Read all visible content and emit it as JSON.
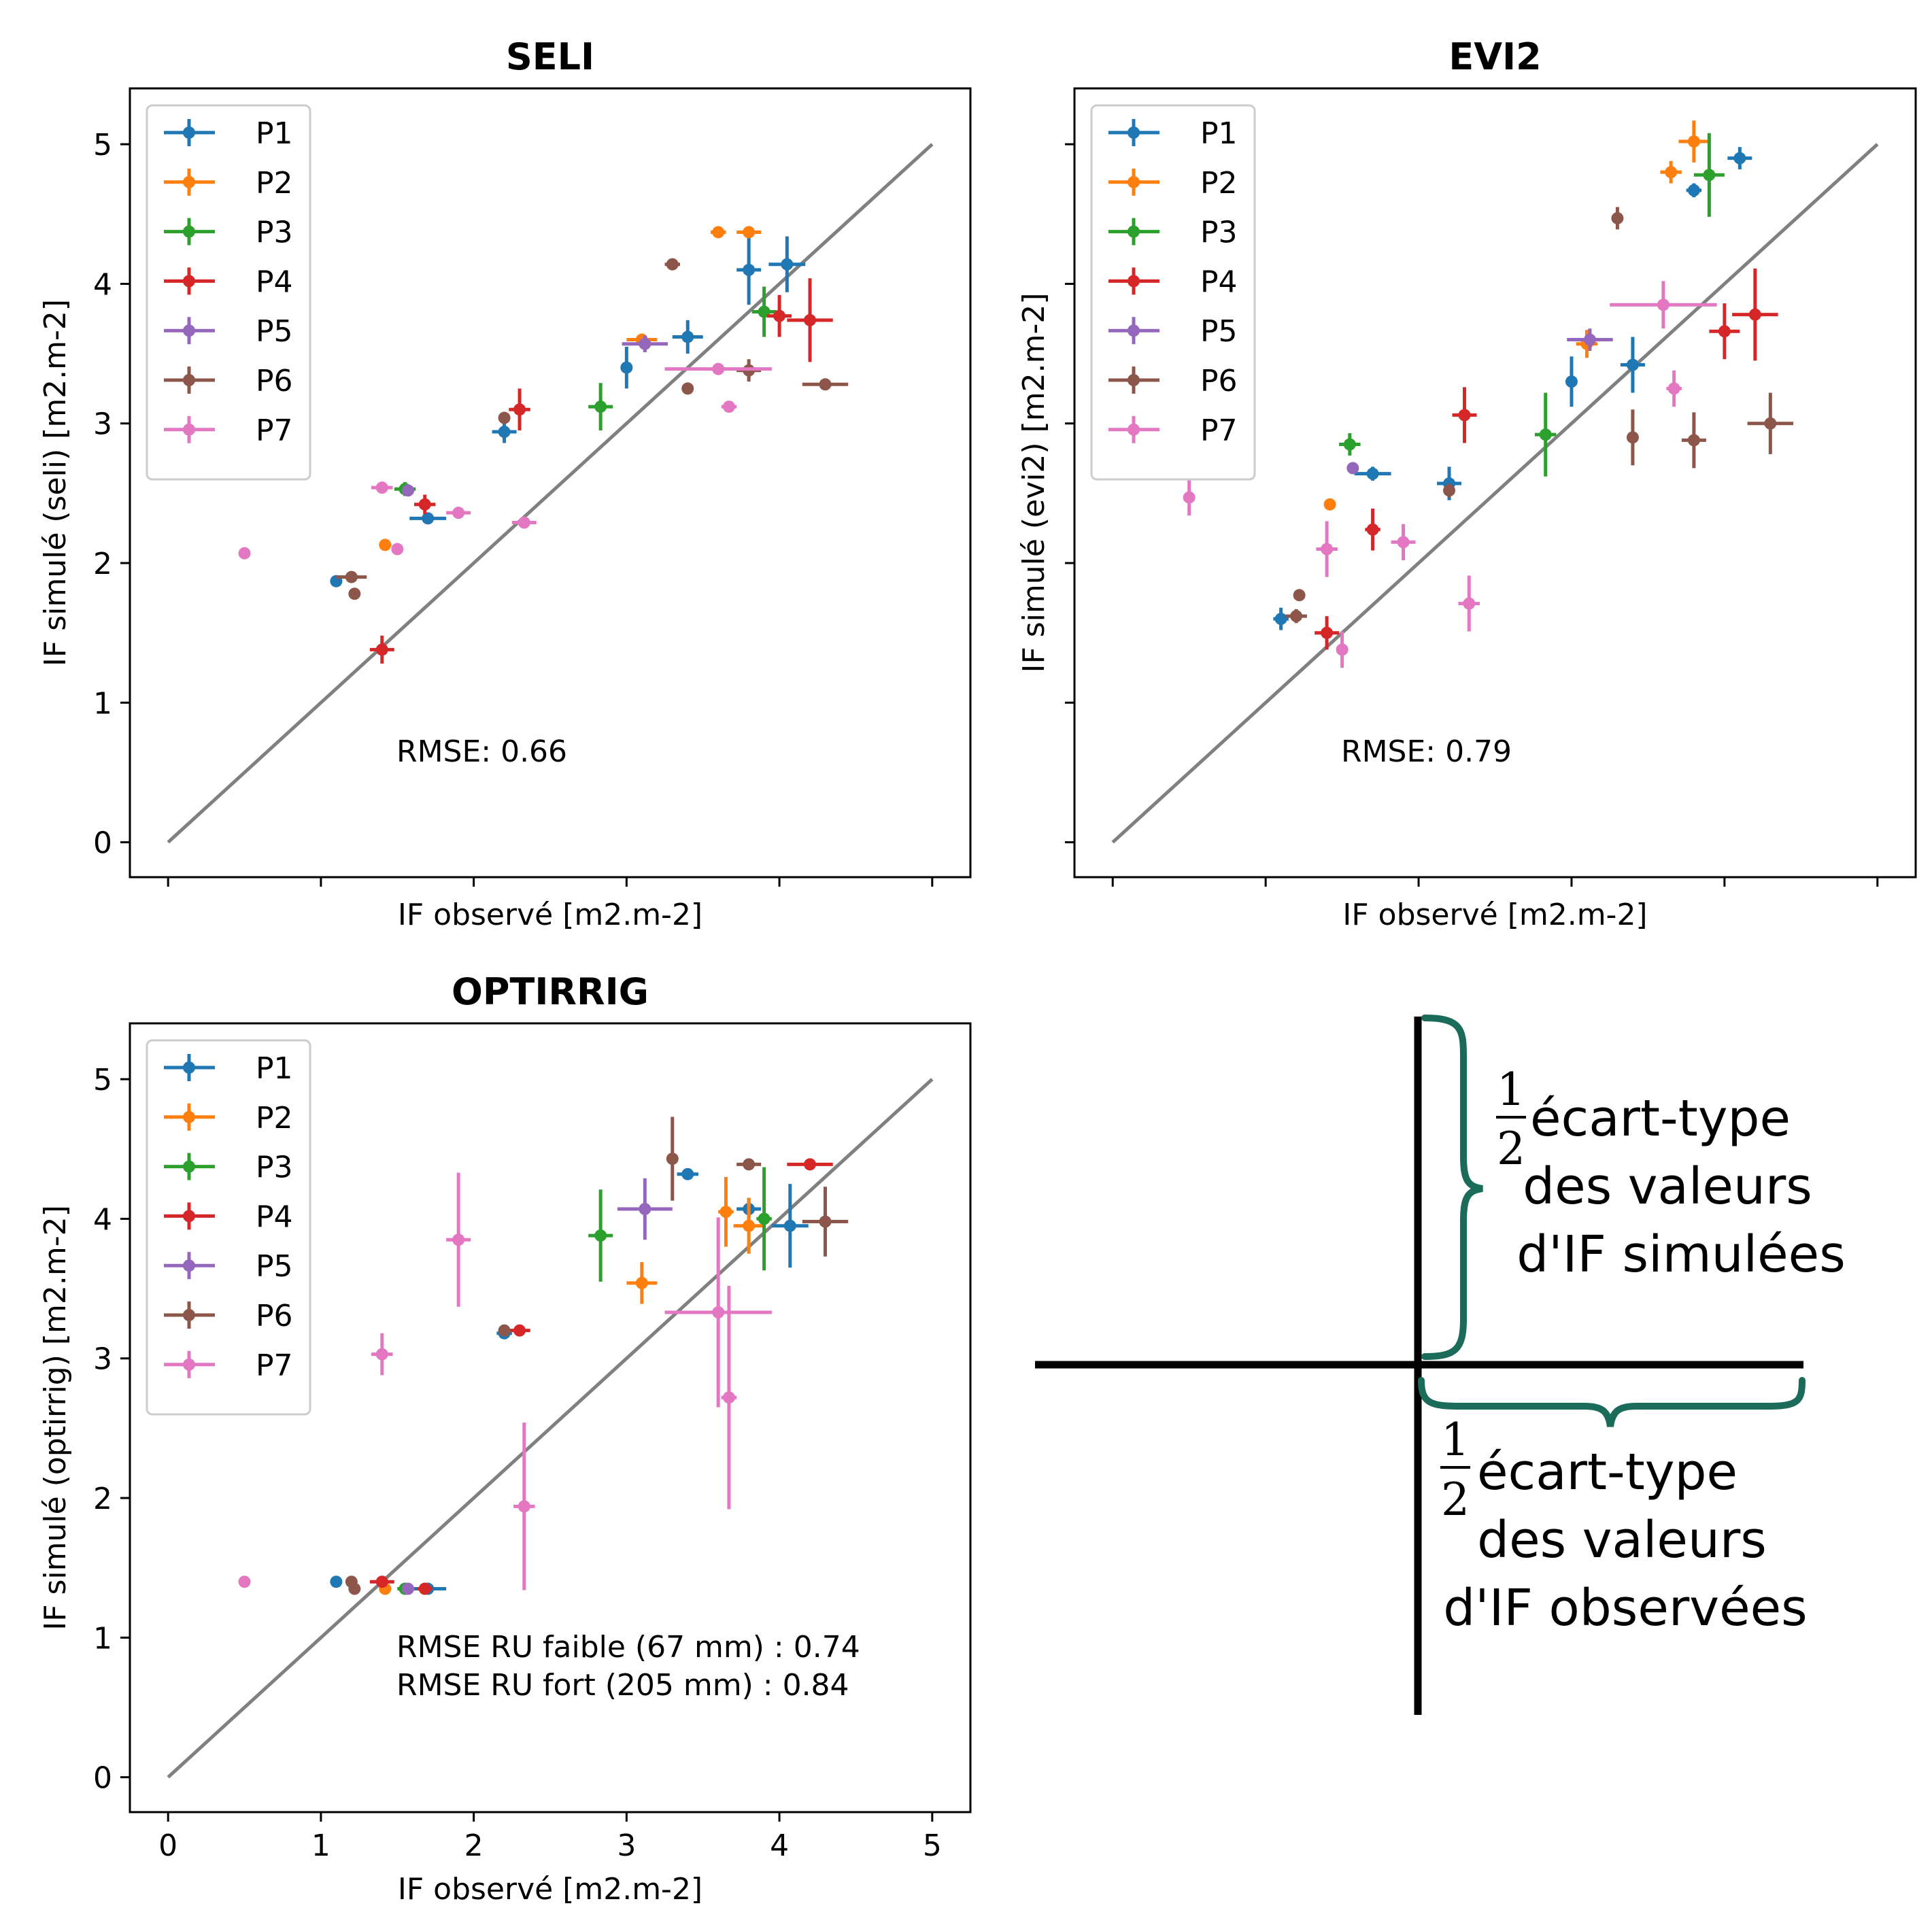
{
  "palette": {
    "P1": "#1f77b4",
    "P2": "#ff7f0e",
    "P3": "#2ca02c",
    "P4": "#d62728",
    "P5": "#9467bd",
    "P6": "#8c564b",
    "P7": "#e377c2",
    "identity_line": "#808080",
    "brace": "#1b6b5a"
  },
  "chart_data": [
    {
      "type": "scatter",
      "title": "SELI",
      "xlabel": "IF observé [m2.m-2]",
      "ylabel": "IF simulé (seli) [m2.m-2]",
      "xlim": [
        -0.25,
        5.25
      ],
      "ylim": [
        -0.25,
        5.4
      ],
      "xticks": [
        0,
        1,
        2,
        3,
        4,
        5
      ],
      "xtick_labels_shown": false,
      "yticks": [
        0,
        1,
        2,
        3,
        4,
        5
      ],
      "ytick_labels_shown": true,
      "identity_line": [
        0,
        5
      ],
      "legend": {
        "position": "top-left",
        "entries": [
          "P1",
          "P2",
          "P3",
          "P4",
          "P5",
          "P6",
          "P7"
        ]
      },
      "annotation": [
        "RMSE: 0.66"
      ],
      "series": [
        {
          "name": "P1",
          "points": [
            {
              "x": 1.1,
              "y": 1.87,
              "xerr": 0.03,
              "yerr": 0.03
            },
            {
              "x": 1.7,
              "y": 2.32,
              "xerr": 0.12,
              "yerr": 0.03
            },
            {
              "x": 2.2,
              "y": 2.94,
              "xerr": 0.08,
              "yerr": 0.08
            },
            {
              "x": 3.0,
              "y": 3.4,
              "xerr": 0.03,
              "yerr": 0.15
            },
            {
              "x": 3.4,
              "y": 3.62,
              "xerr": 0.1,
              "yerr": 0.12
            },
            {
              "x": 3.8,
              "y": 4.1,
              "xerr": 0.08,
              "yerr": 0.25
            },
            {
              "x": 4.05,
              "y": 4.14,
              "xerr": 0.12,
              "yerr": 0.2
            }
          ]
        },
        {
          "name": "P2",
          "points": [
            {
              "x": 1.42,
              "y": 2.13,
              "xerr": 0.03,
              "yerr": 0.02
            },
            {
              "x": 3.1,
              "y": 3.6,
              "xerr": 0.1,
              "yerr": 0.03
            },
            {
              "x": 3.6,
              "y": 4.37,
              "xerr": 0.05,
              "yerr": 0.03
            },
            {
              "x": 3.8,
              "y": 4.37,
              "xerr": 0.08,
              "yerr": 0.03
            }
          ]
        },
        {
          "name": "P3",
          "points": [
            {
              "x": 1.55,
              "y": 2.53,
              "xerr": 0.07,
              "yerr": 0.05
            },
            {
              "x": 2.83,
              "y": 3.12,
              "xerr": 0.08,
              "yerr": 0.17
            },
            {
              "x": 3.9,
              "y": 3.8,
              "xerr": 0.08,
              "yerr": 0.18
            }
          ]
        },
        {
          "name": "P4",
          "points": [
            {
              "x": 1.4,
              "y": 1.38,
              "xerr": 0.08,
              "yerr": 0.1
            },
            {
              "x": 1.68,
              "y": 2.42,
              "xerr": 0.07,
              "yerr": 0.07
            },
            {
              "x": 2.3,
              "y": 3.1,
              "xerr": 0.07,
              "yerr": 0.15
            },
            {
              "x": 4.0,
              "y": 3.77,
              "xerr": 0.08,
              "yerr": 0.15
            },
            {
              "x": 4.2,
              "y": 3.74,
              "xerr": 0.15,
              "yerr": 0.3
            }
          ]
        },
        {
          "name": "P5",
          "points": [
            {
              "x": 1.57,
              "y": 2.52,
              "xerr": 0.04,
              "yerr": 0.04
            },
            {
              "x": 3.12,
              "y": 3.57,
              "xerr": 0.15,
              "yerr": 0.06
            }
          ]
        },
        {
          "name": "P6",
          "points": [
            {
              "x": 1.2,
              "y": 1.9,
              "xerr": 0.1,
              "yerr": 0.02
            },
            {
              "x": 1.22,
              "y": 1.78,
              "xerr": 0.02,
              "yerr": 0.02
            },
            {
              "x": 2.2,
              "y": 3.04,
              "xerr": 0.03,
              "yerr": 0.02
            },
            {
              "x": 3.3,
              "y": 4.14,
              "xerr": 0.05,
              "yerr": 0.03
            },
            {
              "x": 3.4,
              "y": 3.25,
              "xerr": 0.03,
              "yerr": 0.04
            },
            {
              "x": 3.8,
              "y": 3.38,
              "xerr": 0.08,
              "yerr": 0.08
            },
            {
              "x": 4.3,
              "y": 3.28,
              "xerr": 0.15,
              "yerr": 0.02
            }
          ]
        },
        {
          "name": "P7",
          "points": [
            {
              "x": 0.5,
              "y": 2.07,
              "xerr": 0.03,
              "yerr": 0.02
            },
            {
              "x": 1.4,
              "y": 2.54,
              "xerr": 0.07,
              "yerr": 0.02
            },
            {
              "x": 1.5,
              "y": 2.1,
              "xerr": 0.03,
              "yerr": 0.02
            },
            {
              "x": 1.9,
              "y": 2.36,
              "xerr": 0.08,
              "yerr": 0.02
            },
            {
              "x": 2.33,
              "y": 2.29,
              "xerr": 0.08,
              "yerr": 0.02
            },
            {
              "x": 3.6,
              "y": 3.39,
              "xerr": 0.35,
              "yerr": 0.02
            },
            {
              "x": 3.67,
              "y": 3.12,
              "xerr": 0.05,
              "yerr": 0.02
            }
          ]
        }
      ]
    },
    {
      "type": "scatter",
      "title": "EVI2",
      "xlabel": "IF observé [m2.m-2]",
      "ylabel": "IF simulé (evi2) [m2.m-2]",
      "xlim": [
        -0.25,
        5.25
      ],
      "ylim": [
        -0.25,
        5.4
      ],
      "xticks": [
        0,
        1,
        2,
        3,
        4,
        5
      ],
      "xtick_labels_shown": false,
      "yticks": [
        0,
        1,
        2,
        3,
        4,
        5
      ],
      "ytick_labels_shown": false,
      "identity_line": [
        0,
        5
      ],
      "legend": {
        "position": "top-left",
        "entries": [
          "P1",
          "P2",
          "P3",
          "P4",
          "P5",
          "P6",
          "P7"
        ]
      },
      "annotation": [
        "RMSE: 0.79"
      ],
      "series": [
        {
          "name": "P1",
          "points": [
            {
              "x": 1.1,
              "y": 1.6,
              "xerr": 0.05,
              "yerr": 0.08
            },
            {
              "x": 1.7,
              "y": 2.64,
              "xerr": 0.12,
              "yerr": 0.05
            },
            {
              "x": 2.2,
              "y": 2.57,
              "xerr": 0.08,
              "yerr": 0.12
            },
            {
              "x": 3.0,
              "y": 3.3,
              "xerr": 0.03,
              "yerr": 0.18
            },
            {
              "x": 3.4,
              "y": 3.42,
              "xerr": 0.08,
              "yerr": 0.2
            },
            {
              "x": 3.8,
              "y": 4.67,
              "xerr": 0.05,
              "yerr": 0.05
            },
            {
              "x": 4.1,
              "y": 4.9,
              "xerr": 0.08,
              "yerr": 0.08
            }
          ]
        },
        {
          "name": "P2",
          "points": [
            {
              "x": 1.42,
              "y": 2.42,
              "xerr": 0.03,
              "yerr": 0.03
            },
            {
              "x": 3.1,
              "y": 3.57,
              "xerr": 0.07,
              "yerr": 0.1
            },
            {
              "x": 3.65,
              "y": 4.8,
              "xerr": 0.07,
              "yerr": 0.08
            },
            {
              "x": 3.8,
              "y": 5.02,
              "xerr": 0.1,
              "yerr": 0.15
            }
          ]
        },
        {
          "name": "P3",
          "points": [
            {
              "x": 1.55,
              "y": 2.85,
              "xerr": 0.07,
              "yerr": 0.08
            },
            {
              "x": 2.83,
              "y": 2.92,
              "xerr": 0.07,
              "yerr": 0.3
            },
            {
              "x": 3.9,
              "y": 4.78,
              "xerr": 0.1,
              "yerr": 0.3
            }
          ]
        },
        {
          "name": "P4",
          "points": [
            {
              "x": 1.4,
              "y": 1.5,
              "xerr": 0.08,
              "yerr": 0.12
            },
            {
              "x": 1.7,
              "y": 2.24,
              "xerr": 0.05,
              "yerr": 0.15
            },
            {
              "x": 2.3,
              "y": 3.06,
              "xerr": 0.08,
              "yerr": 0.2
            },
            {
              "x": 4.0,
              "y": 3.66,
              "xerr": 0.1,
              "yerr": 0.2
            },
            {
              "x": 4.2,
              "y": 3.78,
              "xerr": 0.15,
              "yerr": 0.33
            }
          ]
        },
        {
          "name": "P5",
          "points": [
            {
              "x": 1.57,
              "y": 2.68,
              "xerr": 0.03,
              "yerr": 0.03
            },
            {
              "x": 3.12,
              "y": 3.6,
              "xerr": 0.15,
              "yerr": 0.08
            }
          ]
        },
        {
          "name": "P6",
          "points": [
            {
              "x": 1.2,
              "y": 1.62,
              "xerr": 0.07,
              "yerr": 0.05
            },
            {
              "x": 1.22,
              "y": 1.77,
              "xerr": 0.03,
              "yerr": 0.03
            },
            {
              "x": 2.2,
              "y": 2.52,
              "xerr": 0.03,
              "yerr": 0.05
            },
            {
              "x": 3.3,
              "y": 4.47,
              "xerr": 0.03,
              "yerr": 0.08
            },
            {
              "x": 3.4,
              "y": 2.9,
              "xerr": 0.03,
              "yerr": 0.2
            },
            {
              "x": 3.8,
              "y": 2.88,
              "xerr": 0.08,
              "yerr": 0.2
            },
            {
              "x": 4.3,
              "y": 3.0,
              "xerr": 0.15,
              "yerr": 0.22
            }
          ]
        },
        {
          "name": "P7",
          "points": [
            {
              "x": 0.5,
              "y": 2.47,
              "xerr": 0.03,
              "yerr": 0.13
            },
            {
              "x": 1.4,
              "y": 2.1,
              "xerr": 0.07,
              "yerr": 0.2
            },
            {
              "x": 1.5,
              "y": 1.38,
              "xerr": 0.03,
              "yerr": 0.13
            },
            {
              "x": 1.9,
              "y": 2.15,
              "xerr": 0.08,
              "yerr": 0.13
            },
            {
              "x": 2.33,
              "y": 1.71,
              "xerr": 0.07,
              "yerr": 0.2
            },
            {
              "x": 3.6,
              "y": 3.85,
              "xerr": 0.35,
              "yerr": 0.17
            },
            {
              "x": 3.67,
              "y": 3.25,
              "xerr": 0.05,
              "yerr": 0.13
            }
          ]
        }
      ]
    },
    {
      "type": "scatter",
      "title": "OPTIRRIG",
      "xlabel": "IF observé [m2.m-2]",
      "ylabel": "IF simulé (optirrig) [m2.m-2]",
      "xlim": [
        -0.25,
        5.25
      ],
      "ylim": [
        -0.25,
        5.4
      ],
      "xticks": [
        0,
        1,
        2,
        3,
        4,
        5
      ],
      "xtick_labels_shown": true,
      "yticks": [
        0,
        1,
        2,
        3,
        4,
        5
      ],
      "ytick_labels_shown": true,
      "identity_line": [
        0,
        5
      ],
      "legend": {
        "position": "top-left",
        "entries": [
          "P1",
          "P2",
          "P3",
          "P4",
          "P5",
          "P6",
          "P7"
        ]
      },
      "annotation": [
        "RMSE RU faible (67 mm) : 0.74",
        "RMSE RU fort (205 mm) : 0.84"
      ],
      "series": [
        {
          "name": "P1",
          "points": [
            {
              "x": 1.1,
              "y": 1.4,
              "xerr": 0.03,
              "yerr": 0.02
            },
            {
              "x": 1.7,
              "y": 1.35,
              "xerr": 0.12,
              "yerr": 0.02
            },
            {
              "x": 2.2,
              "y": 3.18,
              "xerr": 0.05,
              "yerr": 0.02
            },
            {
              "x": 3.4,
              "y": 4.32,
              "xerr": 0.07,
              "yerr": 0.03
            },
            {
              "x": 3.8,
              "y": 4.07,
              "xerr": 0.08,
              "yerr": 0.08
            },
            {
              "x": 4.07,
              "y": 3.95,
              "xerr": 0.12,
              "yerr": 0.3
            }
          ]
        },
        {
          "name": "P2",
          "points": [
            {
              "x": 1.42,
              "y": 1.35,
              "xerr": 0.03,
              "yerr": 0.02
            },
            {
              "x": 3.1,
              "y": 3.54,
              "xerr": 0.1,
              "yerr": 0.15
            },
            {
              "x": 3.65,
              "y": 4.05,
              "xerr": 0.05,
              "yerr": 0.25
            },
            {
              "x": 3.8,
              "y": 3.95,
              "xerr": 0.1,
              "yerr": 0.2
            }
          ]
        },
        {
          "name": "P3",
          "points": [
            {
              "x": 1.55,
              "y": 1.35,
              "xerr": 0.05,
              "yerr": 0.02
            },
            {
              "x": 2.83,
              "y": 3.88,
              "xerr": 0.08,
              "yerr": 0.33
            },
            {
              "x": 3.9,
              "y": 4.0,
              "xerr": 0.05,
              "yerr": 0.37
            }
          ]
        },
        {
          "name": "P4",
          "points": [
            {
              "x": 1.4,
              "y": 1.4,
              "xerr": 0.08,
              "yerr": 0.02
            },
            {
              "x": 1.68,
              "y": 1.35,
              "xerr": 0.05,
              "yerr": 0.02
            },
            {
              "x": 2.3,
              "y": 3.2,
              "xerr": 0.07,
              "yerr": 0.02
            },
            {
              "x": 4.2,
              "y": 4.39,
              "xerr": 0.15,
              "yerr": 0.02
            }
          ]
        },
        {
          "name": "P5",
          "points": [
            {
              "x": 1.57,
              "y": 1.35,
              "xerr": 0.04,
              "yerr": 0.02
            },
            {
              "x": 3.12,
              "y": 4.07,
              "xerr": 0.18,
              "yerr": 0.22
            }
          ]
        },
        {
          "name": "P6",
          "points": [
            {
              "x": 1.2,
              "y": 1.4,
              "xerr": 0.03,
              "yerr": 0.02
            },
            {
              "x": 1.22,
              "y": 1.35,
              "xerr": 0.02,
              "yerr": 0.02
            },
            {
              "x": 2.2,
              "y": 3.2,
              "xerr": 0.02,
              "yerr": 0.02
            },
            {
              "x": 3.3,
              "y": 4.43,
              "xerr": 0.03,
              "yerr": 0.3
            },
            {
              "x": 3.8,
              "y": 4.39,
              "xerr": 0.08,
              "yerr": 0.02
            },
            {
              "x": 4.3,
              "y": 3.98,
              "xerr": 0.15,
              "yerr": 0.25
            }
          ]
        },
        {
          "name": "P7",
          "points": [
            {
              "x": 0.5,
              "y": 1.4,
              "xerr": 0.03,
              "yerr": 0.02
            },
            {
              "x": 1.4,
              "y": 3.03,
              "xerr": 0.07,
              "yerr": 0.15
            },
            {
              "x": 1.9,
              "y": 3.85,
              "xerr": 0.08,
              "yerr": 0.48
            },
            {
              "x": 2.33,
              "y": 1.94,
              "xerr": 0.07,
              "yerr": 0.6
            },
            {
              "x": 3.6,
              "y": 3.33,
              "xerr": 0.35,
              "yerr": 0.68
            },
            {
              "x": 3.67,
              "y": 2.72,
              "xerr": 0.05,
              "yerr": 0.8
            }
          ]
        }
      ]
    }
  ],
  "key": {
    "vertical_brace_text": [
      "écart-type",
      "des valeurs",
      "d'IF simulées"
    ],
    "horizontal_brace_text": [
      "écart-type",
      "des valeurs",
      "d'IF observées"
    ],
    "fraction_numerator": "1",
    "fraction_denominator": "2"
  }
}
